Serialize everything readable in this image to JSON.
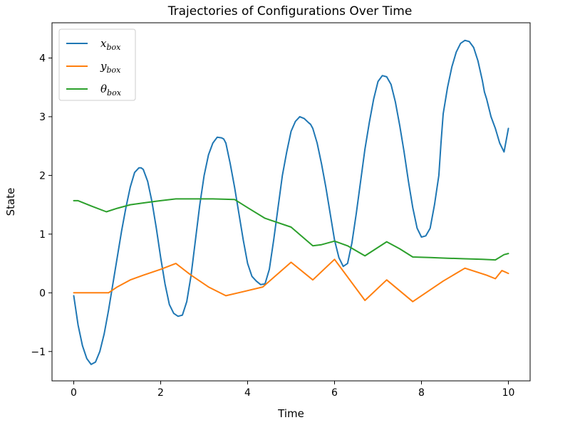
{
  "chart_data": {
    "type": "line",
    "title": "Trajectories of Configurations Over Time",
    "xlabel": "Time",
    "ylabel": "State",
    "xlim": [
      -0.5,
      10.5
    ],
    "ylim": [
      -1.5,
      4.6
    ],
    "xticks": [
      0,
      2,
      4,
      6,
      8,
      10
    ],
    "yticks": [
      -1,
      0,
      1,
      2,
      3,
      4
    ],
    "xtick_labels": [
      "0",
      "2",
      "4",
      "6",
      "8",
      "10"
    ],
    "ytick_labels": [
      "−1",
      "0",
      "1",
      "2",
      "3",
      "4"
    ],
    "grid": false,
    "legend_position": "top-left",
    "series": [
      {
        "name": "x",
        "sub": "box",
        "color": "#1f77b4",
        "x": [
          0,
          0.1,
          0.2,
          0.3,
          0.4,
          0.5,
          0.6,
          0.7,
          0.8,
          0.9,
          1.0,
          1.1,
          1.2,
          1.3,
          1.4,
          1.5,
          1.55,
          1.6,
          1.7,
          1.8,
          1.9,
          2.0,
          2.1,
          2.2,
          2.3,
          2.4,
          2.5,
          2.6,
          2.7,
          2.8,
          2.9,
          3.0,
          3.1,
          3.2,
          3.3,
          3.4,
          3.45,
          3.5,
          3.6,
          3.7,
          3.8,
          3.9,
          4.0,
          4.1,
          4.2,
          4.3,
          4.4,
          4.5,
          4.6,
          4.7,
          4.8,
          4.9,
          5.0,
          5.1,
          5.2,
          5.3,
          5.4,
          5.45,
          5.5,
          5.6,
          5.7,
          5.8,
          5.9,
          6.0,
          6.1,
          6.2,
          6.3,
          6.4,
          6.5,
          6.6,
          6.7,
          6.8,
          6.9,
          7.0,
          7.1,
          7.2,
          7.3,
          7.4,
          7.5,
          7.6,
          7.7,
          7.8,
          7.9,
          8.0,
          8.1,
          8.2,
          8.3,
          8.4,
          8.45,
          8.5,
          8.6,
          8.7,
          8.8,
          8.9,
          9.0,
          9.1,
          9.2,
          9.3,
          9.4,
          9.45,
          9.5,
          9.6,
          9.7,
          9.8,
          9.9,
          10.0
        ],
        "y": [
          -0.05,
          -0.55,
          -0.9,
          -1.12,
          -1.22,
          -1.18,
          -1.0,
          -0.7,
          -0.3,
          0.15,
          0.6,
          1.05,
          1.45,
          1.8,
          2.05,
          2.13,
          2.13,
          2.1,
          1.9,
          1.55,
          1.1,
          0.6,
          0.15,
          -0.2,
          -0.35,
          -0.4,
          -0.38,
          -0.15,
          0.3,
          0.9,
          1.5,
          2.0,
          2.35,
          2.55,
          2.65,
          2.64,
          2.62,
          2.55,
          2.2,
          1.8,
          1.35,
          0.9,
          0.5,
          0.28,
          0.2,
          0.14,
          0.15,
          0.4,
          0.9,
          1.45,
          2.0,
          2.4,
          2.75,
          2.92,
          3.0,
          2.97,
          2.9,
          2.87,
          2.8,
          2.55,
          2.2,
          1.8,
          1.35,
          0.9,
          0.6,
          0.45,
          0.5,
          0.85,
          1.35,
          1.9,
          2.45,
          2.9,
          3.3,
          3.6,
          3.7,
          3.68,
          3.55,
          3.25,
          2.85,
          2.4,
          1.9,
          1.45,
          1.1,
          0.95,
          0.97,
          1.1,
          1.5,
          2.0,
          2.55,
          3.05,
          3.5,
          3.85,
          4.1,
          4.25,
          4.3,
          4.28,
          4.18,
          3.95,
          3.62,
          3.42,
          3.3,
          3.0,
          2.8,
          2.55,
          2.4,
          2.8
        ]
      },
      {
        "name": "y",
        "sub": "box",
        "color": "#ff7f0e",
        "x": [
          0,
          0.2,
          0.4,
          0.6,
          0.8,
          1.0,
          1.3,
          1.6,
          2.0,
          2.35,
          2.7,
          3.1,
          3.5,
          3.9,
          4.35,
          5.0,
          5.5,
          6.0,
          6.7,
          7.2,
          7.8,
          8.5,
          9.0,
          9.5,
          9.7,
          9.85,
          10.0
        ],
        "y": [
          0,
          0,
          0,
          0,
          0,
          0.1,
          0.22,
          0.3,
          0.4,
          0.5,
          0.3,
          0.1,
          -0.05,
          0.02,
          0.1,
          0.52,
          0.22,
          0.57,
          -0.13,
          0.22,
          -0.15,
          0.2,
          0.42,
          0.3,
          0.24,
          0.38,
          0.33
        ]
      },
      {
        "name": "θ",
        "sub": "box",
        "color": "#2ca02c",
        "x": [
          0,
          0.1,
          0.4,
          0.75,
          1.0,
          1.3,
          1.7,
          2.0,
          2.35,
          2.8,
          3.2,
          3.7,
          4.0,
          4.4,
          5.0,
          5.5,
          5.7,
          6.0,
          6.3,
          6.7,
          7.2,
          7.5,
          7.8,
          8.2,
          8.6,
          9.0,
          9.4,
          9.7,
          9.9,
          10.0
        ],
        "y": [
          1.57,
          1.57,
          1.48,
          1.38,
          1.44,
          1.5,
          1.54,
          1.57,
          1.6,
          1.6,
          1.6,
          1.59,
          1.45,
          1.27,
          1.12,
          0.8,
          0.82,
          0.88,
          0.8,
          0.63,
          0.87,
          0.75,
          0.61,
          0.6,
          0.59,
          0.58,
          0.57,
          0.56,
          0.65,
          0.67
        ]
      }
    ]
  }
}
